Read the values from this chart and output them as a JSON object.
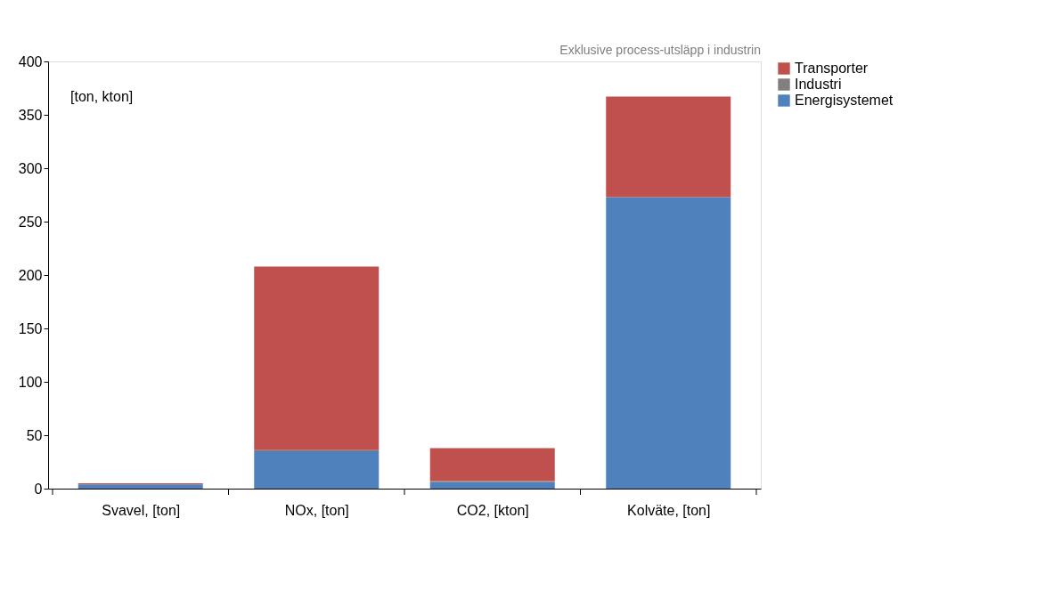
{
  "chart_data": {
    "type": "bar",
    "stacked": true,
    "categories": [
      "Svavel, [ton]",
      "NOx, [ton]",
      "CO2, [kton]",
      "Kolväte, [ton]"
    ],
    "series": [
      {
        "name": "Energisystemet",
        "color": "#4f81bd",
        "values": [
          4,
          35,
          6,
          273
        ]
      },
      {
        "name": "Industri",
        "color": "#808080",
        "values": [
          null,
          1,
          1,
          0
        ]
      },
      {
        "name": "Transporter",
        "color": "#c0504d",
        "values": [
          1,
          172,
          31,
          94
        ]
      }
    ],
    "ylim": [
      0,
      400
    ],
    "yticks": [
      0,
      50,
      100,
      150,
      200,
      250,
      300,
      350,
      400
    ],
    "grid": false,
    "legend": "right",
    "annotations": [
      "[ton, kton]",
      "Exklusive process-utsläpp i industrin"
    ]
  }
}
